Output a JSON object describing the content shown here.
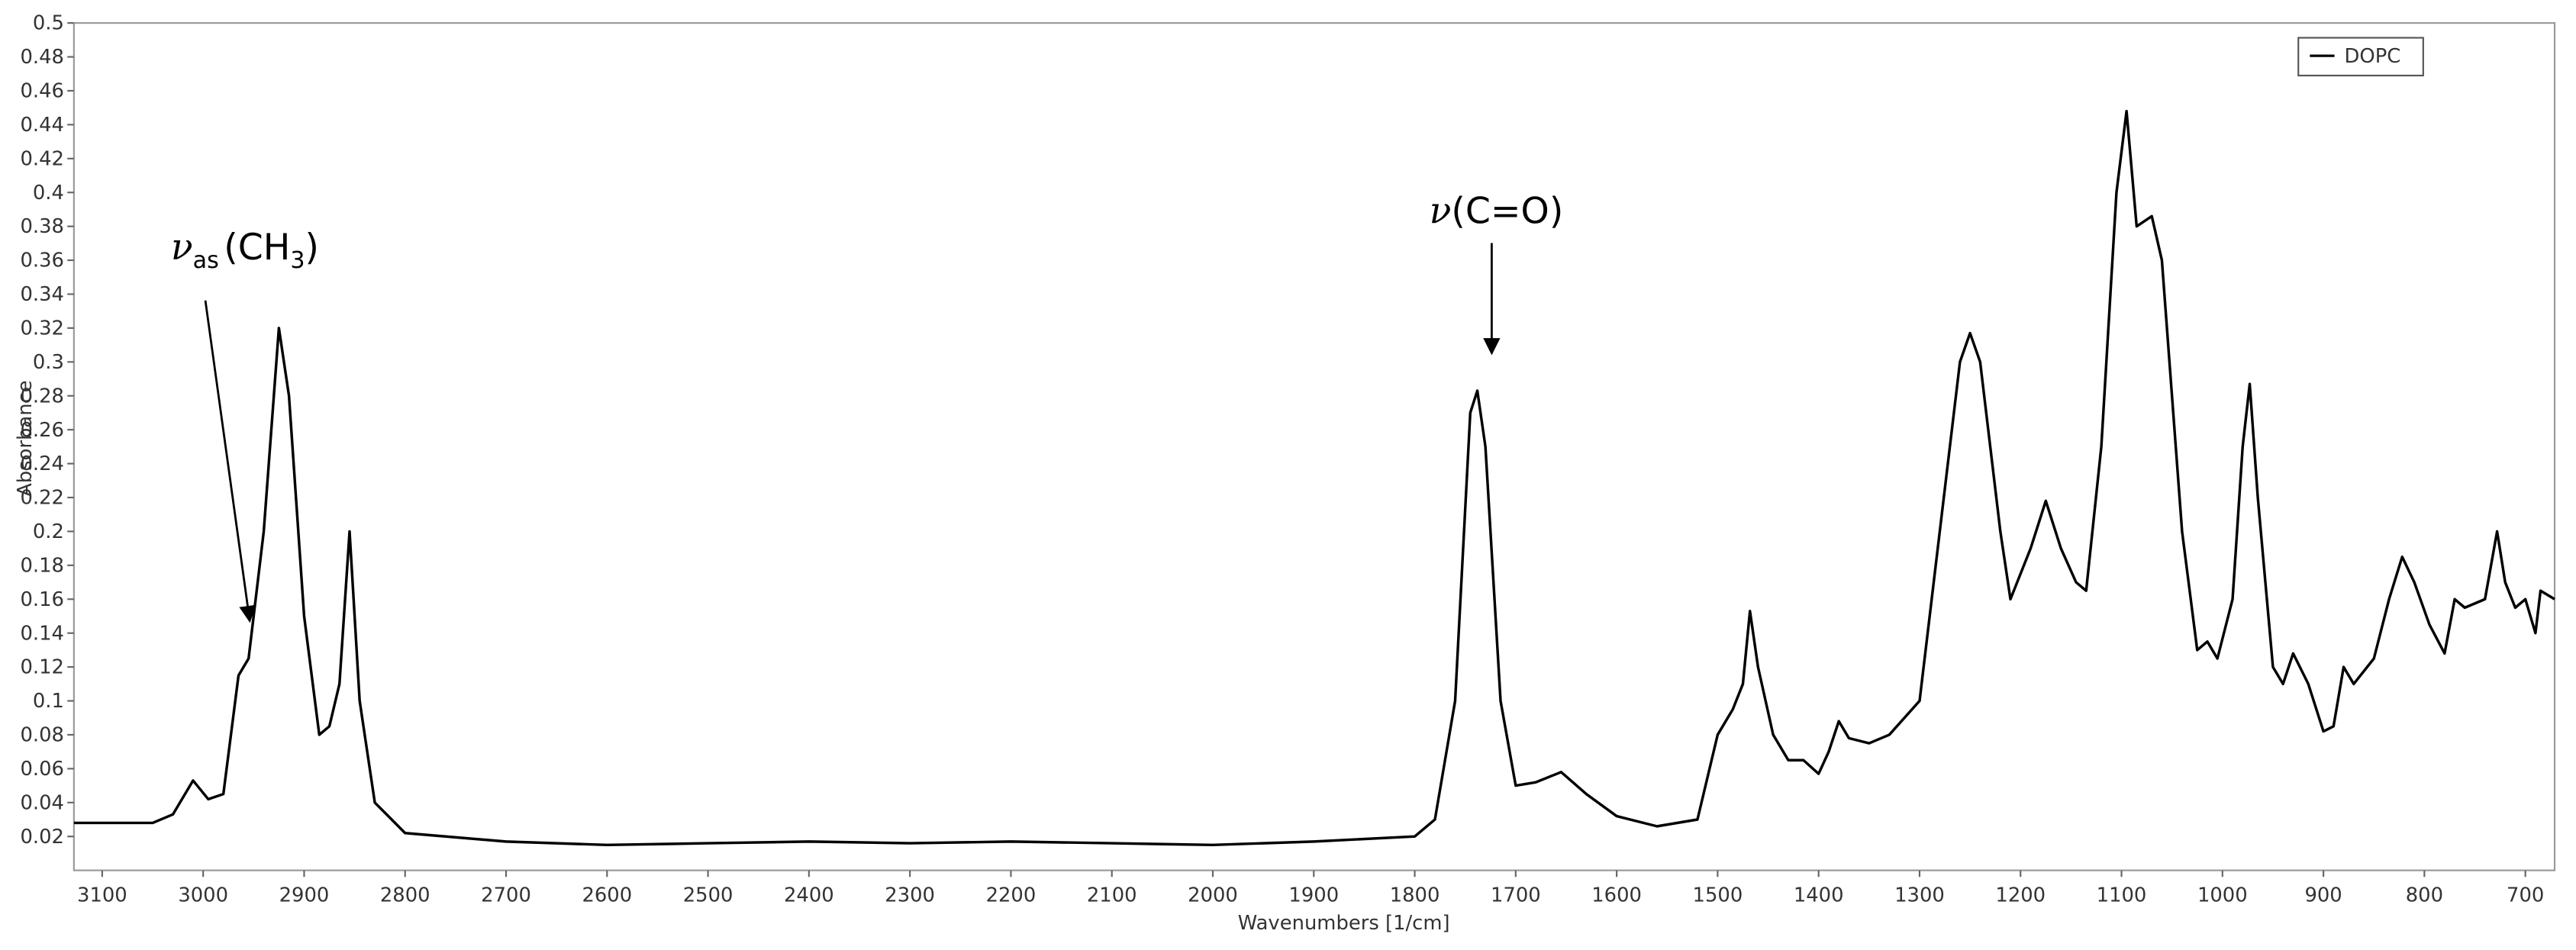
{
  "chart_data": {
    "type": "line",
    "x_label": "Wavenumbers [1/cm]",
    "y_label": "Absorbance",
    "xlim": [
      3128,
      671
    ],
    "ylim": [
      0,
      0.5
    ],
    "xticks": [
      3100,
      3000,
      2900,
      2800,
      2700,
      2600,
      2500,
      2400,
      2300,
      2200,
      2100,
      2000,
      1900,
      1800,
      1700,
      1600,
      1500,
      1400,
      1300,
      1200,
      1100,
      1000,
      900,
      800,
      700
    ],
    "yticks": [
      0.02,
      0.04,
      0.06,
      0.08,
      0.1,
      0.12,
      0.14,
      0.16,
      0.18,
      0.2,
      0.22,
      0.24,
      0.26,
      0.28,
      0.3,
      0.32,
      0.34,
      0.36,
      0.38,
      0.4,
      0.42,
      0.44,
      0.46,
      0.48,
      0.5
    ],
    "grid": false,
    "legend": "upper right",
    "x": [
      3128,
      3050,
      3030,
      3010,
      2995,
      2980,
      2965,
      2955,
      2940,
      2925,
      2915,
      2900,
      2885,
      2875,
      2865,
      2855,
      2845,
      2830,
      2800,
      2700,
      2600,
      2500,
      2400,
      2300,
      2200,
      2100,
      2000,
      1900,
      1800,
      1780,
      1760,
      1745,
      1738,
      1730,
      1715,
      1700,
      1680,
      1655,
      1630,
      1600,
      1560,
      1520,
      1500,
      1485,
      1475,
      1468,
      1460,
      1445,
      1430,
      1415,
      1400,
      1390,
      1380,
      1370,
      1350,
      1330,
      1300,
      1280,
      1260,
      1250,
      1240,
      1220,
      1210,
      1190,
      1175,
      1160,
      1145,
      1135,
      1120,
      1105,
      1095,
      1085,
      1070,
      1060,
      1040,
      1025,
      1015,
      1005,
      990,
      980,
      973,
      965,
      950,
      940,
      930,
      915,
      900,
      890,
      880,
      870,
      850,
      835,
      822,
      810,
      795,
      780,
      770,
      760,
      740,
      728,
      720,
      710,
      700,
      690,
      685,
      671
    ],
    "series": [
      {
        "name": "DOPC",
        "color": "#000000",
        "values": [
          0.028,
          0.028,
          0.033,
          0.053,
          0.042,
          0.045,
          0.115,
          0.125,
          0.2,
          0.32,
          0.28,
          0.15,
          0.08,
          0.085,
          0.11,
          0.2,
          0.1,
          0.04,
          0.022,
          0.017,
          0.015,
          0.016,
          0.017,
          0.016,
          0.017,
          0.016,
          0.015,
          0.017,
          0.02,
          0.03,
          0.1,
          0.27,
          0.283,
          0.25,
          0.1,
          0.05,
          0.052,
          0.058,
          0.045,
          0.032,
          0.026,
          0.03,
          0.08,
          0.095,
          0.11,
          0.153,
          0.12,
          0.08,
          0.065,
          0.065,
          0.057,
          0.07,
          0.088,
          0.078,
          0.075,
          0.08,
          0.1,
          0.2,
          0.3,
          0.317,
          0.3,
          0.2,
          0.16,
          0.19,
          0.218,
          0.19,
          0.17,
          0.165,
          0.25,
          0.4,
          0.448,
          0.38,
          0.386,
          0.36,
          0.2,
          0.13,
          0.135,
          0.125,
          0.16,
          0.25,
          0.287,
          0.22,
          0.12,
          0.11,
          0.128,
          0.11,
          0.082,
          0.085,
          0.12,
          0.11,
          0.125,
          0.16,
          0.185,
          0.17,
          0.145,
          0.128,
          0.16,
          0.155,
          0.16,
          0.2,
          0.17,
          0.155,
          0.16,
          0.14,
          0.165,
          0.16
        ]
      }
    ],
    "annotations": [
      {
        "symbol": "ν",
        "subscript": "as",
        "text": "(CH",
        "text_subscript": "3",
        "text_end": ")"
      },
      {
        "symbol": "ν",
        "text": "(C=O)"
      }
    ]
  }
}
